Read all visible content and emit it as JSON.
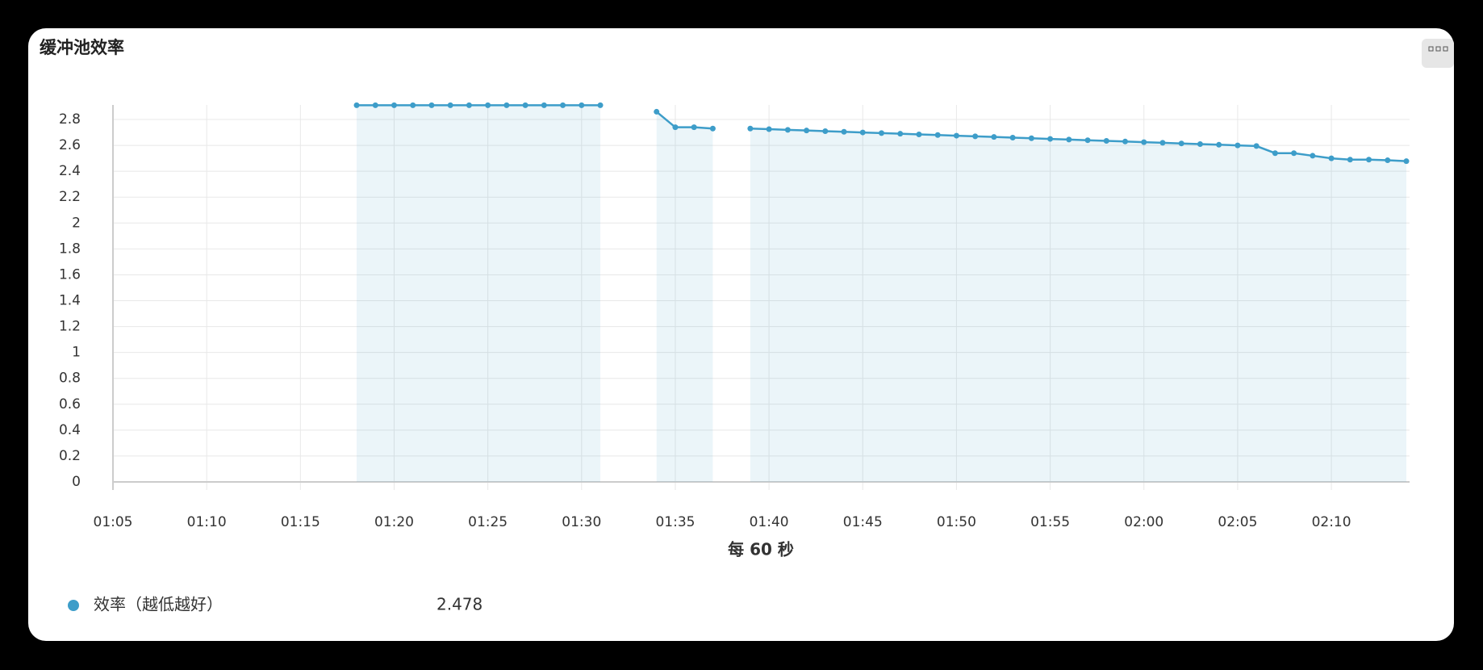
{
  "chart_data": {
    "type": "line",
    "title": "缓冲池效率",
    "xlabel": "每 60 秒",
    "x": [
      "01:18",
      "01:19",
      "01:20",
      "01:21",
      "01:22",
      "01:23",
      "01:24",
      "01:25",
      "01:26",
      "01:27",
      "01:28",
      "01:29",
      "01:30",
      "01:31",
      "01:32",
      "01:33",
      "01:34",
      "01:35",
      "01:36",
      "01:37",
      "01:38",
      "01:39",
      "01:40",
      "01:41",
      "01:42",
      "01:43",
      "01:44",
      "01:45",
      "01:46",
      "01:47",
      "01:48",
      "01:49",
      "01:50",
      "01:51",
      "01:52",
      "01:53",
      "01:54",
      "01:55",
      "01:56",
      "01:57",
      "01:58",
      "01:59",
      "02:00",
      "02:01",
      "02:02",
      "02:03",
      "02:04",
      "02:05",
      "02:06",
      "02:07",
      "02:08",
      "02:09",
      "02:10",
      "02:11",
      "02:12",
      "02:13",
      "02:14"
    ],
    "series": [
      {
        "name": "效率（越低越好）",
        "color": "#3d9dc9",
        "values": [
          2.91,
          2.91,
          2.91,
          2.91,
          2.91,
          2.91,
          2.91,
          2.91,
          2.91,
          2.91,
          2.91,
          2.91,
          2.91,
          2.91,
          null,
          null,
          2.86,
          2.74,
          2.74,
          2.73,
          null,
          2.73,
          2.725,
          2.72,
          2.715,
          2.71,
          2.705,
          2.7,
          2.695,
          2.69,
          2.685,
          2.68,
          2.675,
          2.67,
          2.665,
          2.66,
          2.655,
          2.65,
          2.645,
          2.64,
          2.635,
          2.63,
          2.625,
          2.62,
          2.615,
          2.61,
          2.605,
          2.6,
          2.595,
          2.54,
          2.54,
          2.52,
          2.5,
          2.49,
          2.49,
          2.485,
          2.478
        ]
      }
    ],
    "xlim": [
      "01:05",
      "02:14"
    ],
    "xticks": [
      "01:05",
      "01:10",
      "01:15",
      "01:20",
      "01:25",
      "01:30",
      "01:35",
      "01:40",
      "01:45",
      "01:50",
      "01:55",
      "02:00",
      "02:05",
      "02:10"
    ],
    "ylim": [
      0,
      2.9
    ],
    "yticks": [
      0,
      0.2,
      0.4,
      0.6,
      0.8,
      1,
      1.2,
      1.4,
      1.6,
      1.8,
      2,
      2.2,
      2.4,
      2.6,
      2.8
    ],
    "grid": true
  }
}
